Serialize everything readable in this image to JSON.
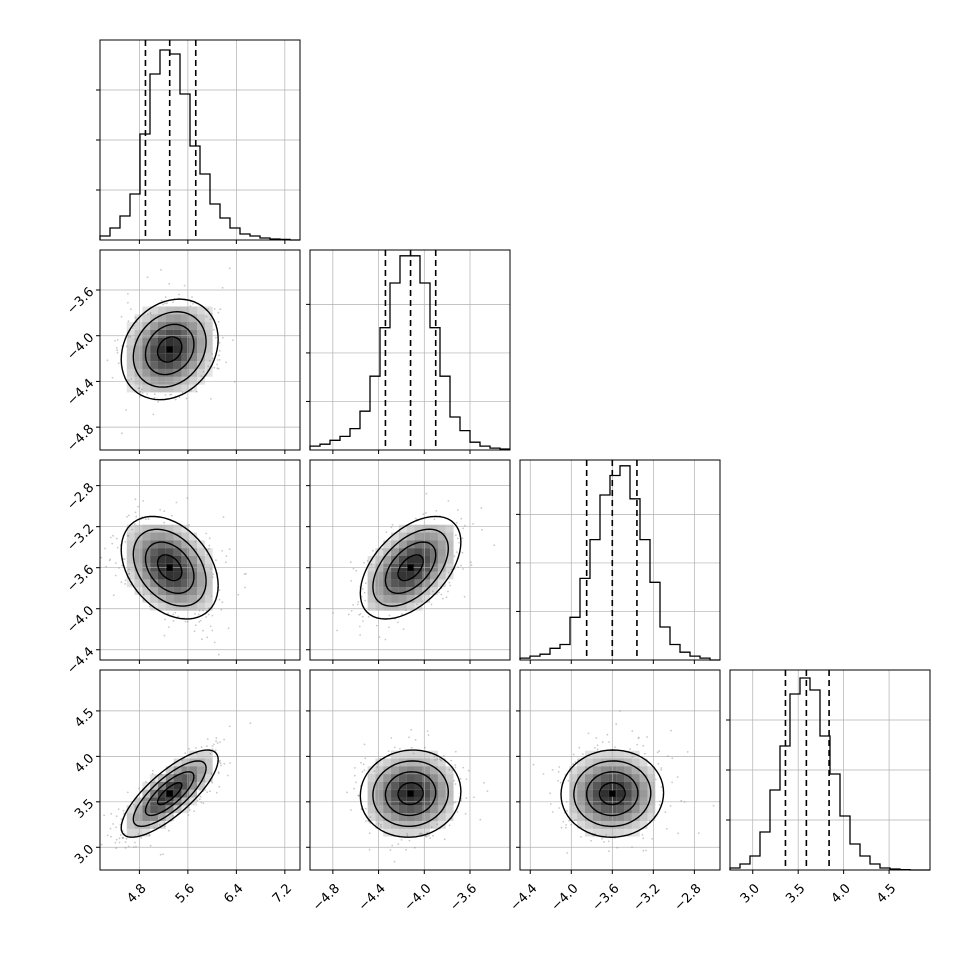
{
  "chart_data": {
    "type": "corner",
    "title": "",
    "parameters": [
      "",
      "",
      "",
      ""
    ],
    "style": {
      "line_color": "#000000",
      "grid_color": "#b0b0b0",
      "scatter_color": "#888888",
      "density_color": "#000000"
    },
    "grid": true,
    "axis_ranges": [
      [
        4.15,
        7.45
      ],
      [
        -5.0,
        -3.25
      ],
      [
        -4.5,
        -2.55
      ],
      [
        2.75,
        4.95
      ]
    ],
    "ticks": [
      {
        "values": [
          4.8,
          5.6,
          6.4,
          7.2
        ],
        "labels": [
          "4.8",
          "5.6",
          "6.4",
          "7.2"
        ]
      },
      {
        "values": [
          -4.8,
          -4.4,
          -4.0,
          -3.6
        ],
        "labels": [
          "−4.8",
          "−4.4",
          "−4.0",
          "−3.6"
        ]
      },
      {
        "values": [
          -4.4,
          -4.0,
          -3.6,
          -3.2,
          -2.8
        ],
        "labels": [
          "−4.4",
          "−4.0",
          "−3.6",
          "−3.2",
          "−2.8"
        ]
      },
      {
        "values": [
          3.0,
          3.5,
          4.0,
          4.5
        ],
        "labels": [
          "3.0",
          "3.5",
          "4.0",
          "4.5"
        ]
      }
    ],
    "histograms": [
      {
        "bin_edges": [
          4.15,
          4.315,
          4.48,
          4.645,
          4.81,
          4.975,
          5.14,
          5.305,
          5.47,
          5.635,
          5.8,
          5.965,
          6.13,
          6.295,
          6.46,
          6.625,
          6.79,
          6.955,
          7.12,
          7.285,
          7.45
        ],
        "counts": [
          2,
          6,
          12,
          23,
          53,
          83,
          95,
          93,
          73,
          47,
          33,
          18,
          11,
          6,
          3,
          2,
          1,
          0.5,
          0.3,
          0
        ],
        "max": 100,
        "quantiles": [
          4.9,
          5.3,
          5.73
        ]
      },
      {
        "bin_edges": [
          -5.0,
          -4.9125,
          -4.825,
          -4.7375,
          -4.65,
          -4.5625,
          -4.475,
          -4.3875,
          -4.3,
          -4.2125,
          -4.125,
          -4.0375,
          -3.95,
          -3.8625,
          -3.775,
          -3.6875,
          -3.6,
          -3.5125,
          -3.425,
          -3.3375,
          -3.25
        ],
        "counts": [
          2,
          3,
          5,
          7,
          11,
          20,
          38,
          63,
          86,
          100,
          100,
          86,
          63,
          38,
          17,
          10,
          4,
          2,
          1,
          0.5
        ],
        "max": 103,
        "quantiles": [
          -4.34,
          -4.12,
          -3.9
        ]
      },
      {
        "bin_edges": [
          -4.5,
          -4.4025,
          -4.305,
          -4.2075,
          -4.11,
          -4.0125,
          -3.915,
          -3.8175,
          -3.72,
          -3.6225,
          -3.525,
          -3.4275,
          -3.33,
          -3.2325,
          -3.135,
          -3.0375,
          -2.94,
          -2.8425,
          -2.745,
          -2.6475,
          -2.55
        ],
        "counts": [
          1,
          2,
          3,
          6,
          8,
          22,
          42,
          62,
          85,
          95,
          100,
          83,
          62,
          40,
          17,
          8,
          4,
          2,
          1,
          0
        ],
        "max": 103,
        "quantiles": [
          -3.85,
          -3.6,
          -3.36
        ]
      },
      {
        "bin_edges": [
          2.75,
          2.86,
          2.97,
          3.08,
          3.19,
          3.3,
          3.41,
          3.52,
          3.63,
          3.74,
          3.85,
          3.96,
          4.07,
          4.18,
          4.29,
          4.4,
          4.51,
          4.62,
          4.73,
          4.84,
          4.95
        ],
        "counts": [
          1,
          3,
          7,
          19,
          40,
          62,
          88,
          96,
          90,
          67,
          48,
          27,
          13,
          7,
          3,
          1,
          0.5,
          0.2,
          0,
          0
        ],
        "max": 100,
        "quantiles": [
          3.36,
          3.59,
          3.84
        ]
      }
    ],
    "pairs": [
      {
        "x": 0,
        "y": 1,
        "mean": [
          5.3,
          -4.12
        ],
        "sd": [
          0.4,
          0.22
        ],
        "rho": 0.2
      },
      {
        "x": 0,
        "y": 2,
        "mean": [
          5.3,
          -3.6
        ],
        "sd": [
          0.4,
          0.25
        ],
        "rho": -0.35
      },
      {
        "x": 1,
        "y": 2,
        "mean": [
          -4.12,
          -3.6
        ],
        "sd": [
          0.22,
          0.25
        ],
        "rho": 0.5
      },
      {
        "x": 0,
        "y": 3,
        "mean": [
          5.3,
          3.59
        ],
        "sd": [
          0.4,
          0.24
        ],
        "rho": 0.78
      },
      {
        "x": 1,
        "y": 3,
        "mean": [
          -4.12,
          3.59
        ],
        "sd": [
          0.22,
          0.24
        ],
        "rho": 0.05
      },
      {
        "x": 2,
        "y": 3,
        "mean": [
          -3.6,
          3.59
        ],
        "sd": [
          0.25,
          0.24
        ],
        "rho": 0.02
      }
    ]
  }
}
